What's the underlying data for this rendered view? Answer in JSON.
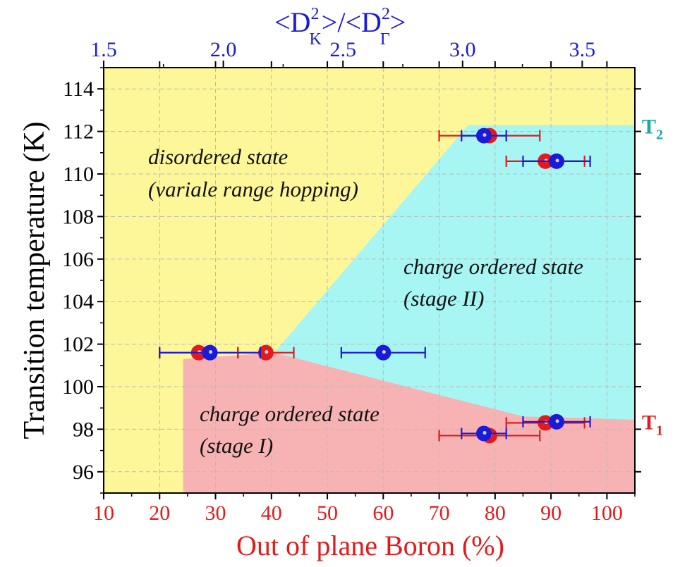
{
  "chart_data": {
    "type": "scatter",
    "title": "",
    "xlabel": "Out of plane Boron (%)",
    "ylabel": "Transition temperature (K)",
    "top_xlabel": {
      "base1": "<D",
      "sub1": "K",
      "mid": ">/<D",
      "sub2": "Γ",
      "end": ">",
      "sup": "2"
    },
    "xlim": [
      10,
      105
    ],
    "ylim": [
      95,
      115
    ],
    "top_xlim": [
      1.5,
      3.72
    ],
    "x_ticks": [
      "10",
      "20",
      "30",
      "40",
      "50",
      "60",
      "70",
      "80",
      "90",
      "100"
    ],
    "y_ticks": [
      "96",
      "98",
      "100",
      "102",
      "104",
      "106",
      "108",
      "110",
      "112",
      "114"
    ],
    "top_ticks": [
      "1.5",
      "2.0",
      "2.5",
      "3.0",
      "3.5"
    ],
    "grid": true,
    "colors": {
      "red": "#e31a1c",
      "blue": "#1a1ad9",
      "yellow": "#fdf79a",
      "cyan": "#a7f6f3",
      "pink": "#f7b3b3",
      "T2_color": "#1aa7a7",
      "T1_color": "#e31a1c"
    },
    "regions": [
      {
        "name": "disordered",
        "color": "yellow",
        "lines": [
          "disordered state",
          "(variale range hopping)"
        ]
      },
      {
        "name": "stage-II",
        "color": "cyan",
        "lines": [
          "charge ordered state",
          "(stage II)"
        ]
      },
      {
        "name": "stage-I",
        "color": "pink",
        "lines": [
          "charge ordered state",
          "(stage I)"
        ]
      }
    ],
    "series_labels": [
      {
        "name": "T",
        "sub": "2",
        "color": "T2_color",
        "y": 112.3
      },
      {
        "name": "T",
        "sub": "1",
        "color": "T1_color",
        "y": 98.4
      }
    ],
    "series": [
      {
        "name": "red",
        "color": "red",
        "points": [
          {
            "x": 79,
            "y": 111.8,
            "xerr": 9
          },
          {
            "x": 89,
            "y": 110.6,
            "xerr": 7
          },
          {
            "x": 27,
            "y": 101.6,
            "xerr": 7
          },
          {
            "x": 39,
            "y": 101.6,
            "xerr": 5
          },
          {
            "x": 89,
            "y": 98.3,
            "xerr": 7
          },
          {
            "x": 79,
            "y": 97.7,
            "xerr": 9
          }
        ]
      },
      {
        "name": "blue",
        "color": "blue",
        "points": [
          {
            "x": 78,
            "y": 111.8,
            "xerr": 4
          },
          {
            "x": 91,
            "y": 110.6,
            "xerr": 6
          },
          {
            "x": 29,
            "y": 101.6,
            "xerr": 9
          },
          {
            "x": 60,
            "y": 101.6,
            "xerr": 7.5
          },
          {
            "x": 91,
            "y": 98.35,
            "xerr": 6
          },
          {
            "x": 78,
            "y": 97.8,
            "xerr": 4
          }
        ]
      }
    ]
  }
}
